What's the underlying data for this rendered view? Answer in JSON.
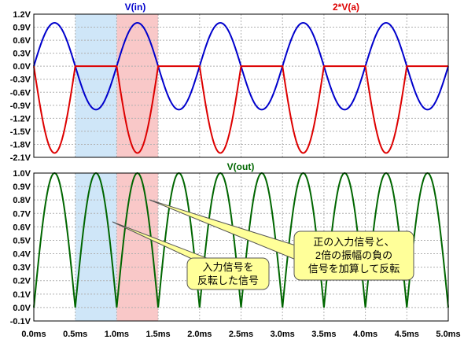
{
  "chart_data": [
    {
      "type": "line",
      "panel": "top",
      "series": [
        {
          "name": "V(in)",
          "color": "#0000cc",
          "function": "sine",
          "amplitude": 1.0,
          "period_ms": 1.0,
          "phase": "sin"
        },
        {
          "name": "2*V(a)",
          "color": "#dd0000",
          "function": "neg_half_rect",
          "amplitude": 2.0,
          "period_ms": 1.0
        }
      ],
      "xlim": [
        0,
        5.0
      ],
      "ylim": [
        -2.1,
        1.2
      ],
      "yticks": [
        "1.2V",
        "0.9V",
        "0.6V",
        "0.3V",
        "0.0V",
        "-0.3V",
        "-0.6V",
        "-0.9V",
        "-1.2V",
        "-1.5V",
        "-1.8V",
        "-2.1V"
      ],
      "ytick_values": [
        1.2,
        0.9,
        0.6,
        0.3,
        0.0,
        -0.3,
        -0.6,
        -0.9,
        -1.2,
        -1.5,
        -1.8,
        -2.1
      ],
      "grid": true
    },
    {
      "type": "line",
      "panel": "bottom",
      "series": [
        {
          "name": "V(out)",
          "color": "#006600",
          "function": "abs_sine",
          "amplitude": 1.0,
          "period_ms": 1.0
        }
      ],
      "xlim": [
        0,
        5.0
      ],
      "ylim": [
        -0.1,
        1.0
      ],
      "yticks": [
        "1.0V",
        "0.9V",
        "0.8V",
        "0.7V",
        "0.6V",
        "0.5V",
        "0.4V",
        "0.3V",
        "0.2V",
        "0.1V",
        "0.0V",
        "-0.1V"
      ],
      "ytick_values": [
        1.0,
        0.9,
        0.8,
        0.7,
        0.6,
        0.5,
        0.4,
        0.3,
        0.2,
        0.1,
        0.0,
        -0.1
      ],
      "xticks": [
        "0.0ms",
        "0.5ms",
        "1.0ms",
        "1.5ms",
        "2.0ms",
        "2.5ms",
        "3.0ms",
        "3.5ms",
        "4.0ms",
        "4.5ms",
        "5.0ms"
      ],
      "xtick_values": [
        0,
        0.5,
        1.0,
        1.5,
        2.0,
        2.5,
        3.0,
        3.5,
        4.0,
        4.5,
        5.0
      ],
      "grid": true
    }
  ],
  "highlights": [
    {
      "x_start": 0.5,
      "x_end": 1.0,
      "color": "#cfe6f8"
    },
    {
      "x_start": 1.0,
      "x_end": 1.5,
      "color": "#f9c8c8"
    }
  ],
  "annotations": [
    {
      "id": "note1",
      "lines": [
        "入力信号を",
        "反転した信号"
      ]
    },
    {
      "id": "note2",
      "lines": [
        "正の入力信号と、",
        "2倍の振幅の負の",
        "信号を加算して反転"
      ]
    }
  ]
}
